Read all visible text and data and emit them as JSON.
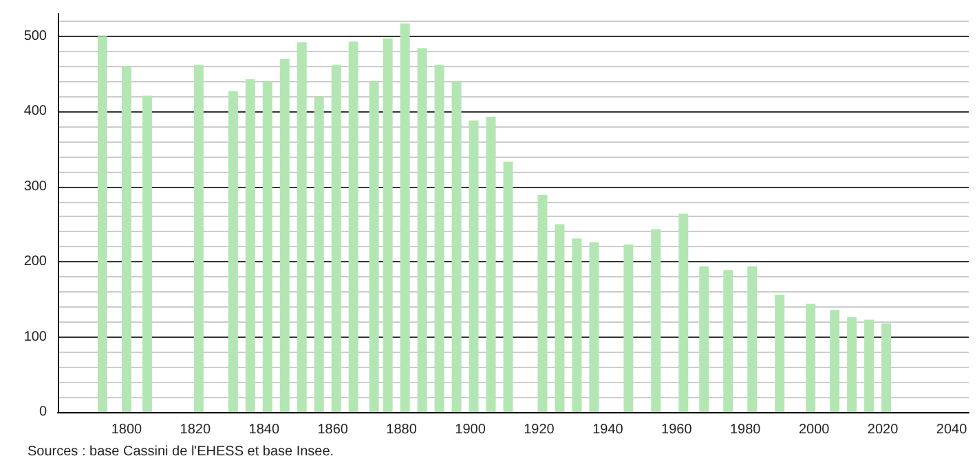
{
  "chart_data": {
    "type": "bar",
    "x": [
      1793,
      1800,
      1806,
      1821,
      1831,
      1836,
      1841,
      1846,
      1851,
      1856,
      1861,
      1866,
      1872,
      1876,
      1881,
      1886,
      1891,
      1896,
      1901,
      1906,
      1911,
      1921,
      1926,
      1931,
      1936,
      1946,
      1954,
      1962,
      1968,
      1975,
      1982,
      1990,
      1999,
      2006,
      2011,
      2016,
      2021
    ],
    "values": [
      500,
      460,
      421,
      462,
      427,
      443,
      440,
      470,
      492,
      419,
      462,
      493,
      440,
      497,
      517,
      484,
      462,
      440,
      388,
      393,
      333,
      289,
      250,
      231,
      226,
      223,
      243,
      264,
      194,
      189,
      194,
      156,
      144,
      136,
      126,
      123,
      118
    ],
    "color": "#b3e6b3",
    "xlim": [
      1780,
      2045
    ],
    "xticks": [
      1800,
      1820,
      1840,
      1860,
      1880,
      1900,
      1920,
      1940,
      1960,
      1980,
      2000,
      2020,
      2040
    ],
    "ylim": [
      0,
      530
    ],
    "yticks": [
      0,
      100,
      200,
      300,
      400,
      500
    ],
    "grid": "y",
    "annotations": [
      "Sources : base Cassini de l'EHESS et base Insee."
    ]
  }
}
